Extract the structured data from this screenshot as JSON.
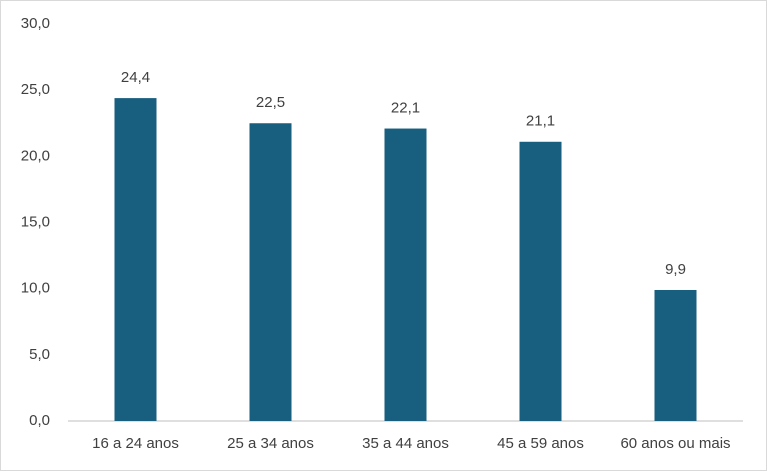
{
  "chart_data": {
    "type": "bar",
    "categories": [
      "16 a 24 anos",
      "25 a 34 anos",
      "35 a 44 anos",
      "45 a 59 anos",
      "60 anos ou mais"
    ],
    "values": [
      24.4,
      22.5,
      22.1,
      21.1,
      9.9
    ],
    "value_labels": [
      "24,4",
      "22,5",
      "22,1",
      "21,1",
      "9,9"
    ],
    "color": "#175e7f",
    "ylim": [
      0,
      30
    ],
    "yticks": [
      {
        "value": 0,
        "label": "0,0"
      },
      {
        "value": 5,
        "label": "5,0"
      },
      {
        "value": 10,
        "label": "10,0"
      },
      {
        "value": 15,
        "label": "15,0"
      },
      {
        "value": 20,
        "label": "20,0"
      },
      {
        "value": 25,
        "label": "25,0"
      },
      {
        "value": 30,
        "label": "30,0"
      }
    ],
    "grid": false
  }
}
